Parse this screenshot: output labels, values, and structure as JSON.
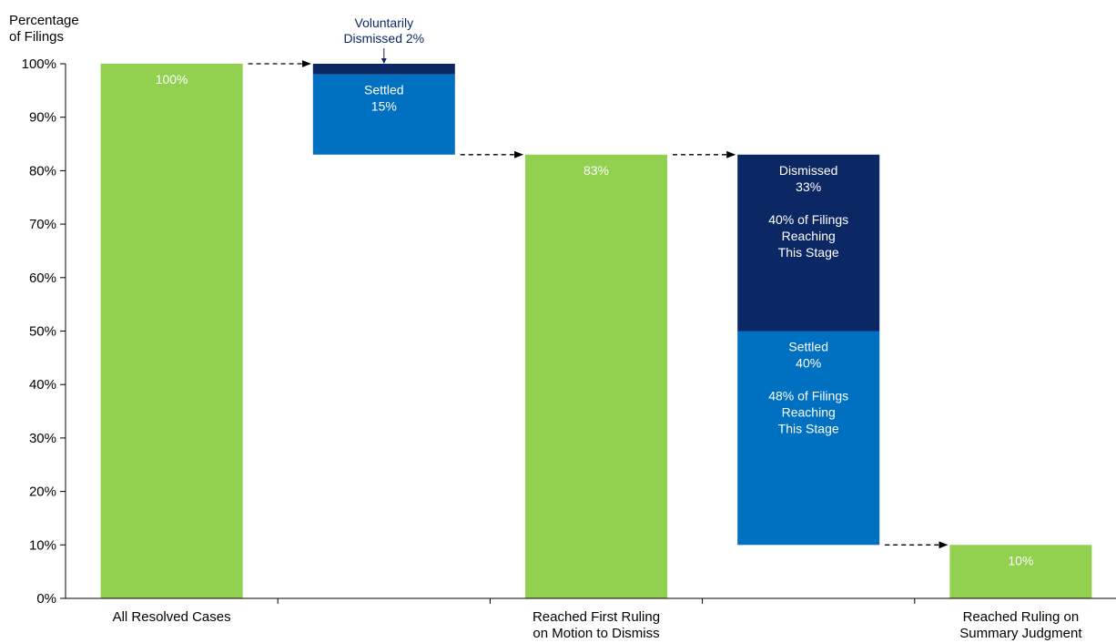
{
  "chart_data": {
    "type": "bar",
    "ylabel_lines": [
      "Percentage",
      "of Filings"
    ],
    "ylim": [
      0,
      100
    ],
    "yticks": [
      "0%",
      "10%",
      "20%",
      "30%",
      "40%",
      "50%",
      "60%",
      "70%",
      "80%",
      "90%",
      "100%"
    ],
    "grid": false,
    "categories": [
      [
        "All Resolved Cases"
      ],
      [
        ""
      ],
      [
        "Reached First Ruling",
        "on Motion to Dismiss"
      ],
      [
        ""
      ],
      [
        "Reached Ruling on",
        "Summary Judgment"
      ]
    ],
    "segments": [
      {
        "category": 0,
        "bottom": 0,
        "top": 100,
        "color": "#92d050",
        "label": [
          "100%"
        ],
        "label_pos": "top"
      },
      {
        "category": 1,
        "bottom": 98,
        "top": 100,
        "color": "#0b2864",
        "label": [],
        "label_pos": "none"
      },
      {
        "category": 1,
        "bottom": 83,
        "top": 98,
        "color": "#0070c0",
        "label": [
          "Settled",
          "15%"
        ],
        "label_pos": "top"
      },
      {
        "category": 2,
        "bottom": 0,
        "top": 83,
        "color": "#92d050",
        "label": [
          "83%"
        ],
        "label_pos": "top"
      },
      {
        "category": 3,
        "bottom": 50,
        "top": 83,
        "color": "#0b2864",
        "label": [
          "Dismissed",
          "33%",
          "",
          "40% of Filings",
          "Reaching",
          "This Stage"
        ],
        "label_pos": "top"
      },
      {
        "category": 3,
        "bottom": 10,
        "top": 50,
        "color": "#0070c0",
        "label": [
          "Settled",
          "40%",
          "",
          "48% of Filings",
          "Reaching",
          "This Stage"
        ],
        "label_pos": "top"
      },
      {
        "category": 4,
        "bottom": 0,
        "top": 10,
        "color": "#92d050",
        "label": [
          "10%"
        ],
        "label_pos": "top"
      }
    ],
    "connectors": [
      {
        "from": 0,
        "to": 1,
        "value": 100
      },
      {
        "from": 1,
        "to": 2,
        "value": 83
      },
      {
        "from": 2,
        "to": 3,
        "value": 83
      },
      {
        "from": 3,
        "to": 4,
        "value": 10
      }
    ],
    "annotation": {
      "lines": [
        "Voluntarily",
        "Dismissed 2%"
      ],
      "category": 1,
      "points_to": 100
    }
  }
}
